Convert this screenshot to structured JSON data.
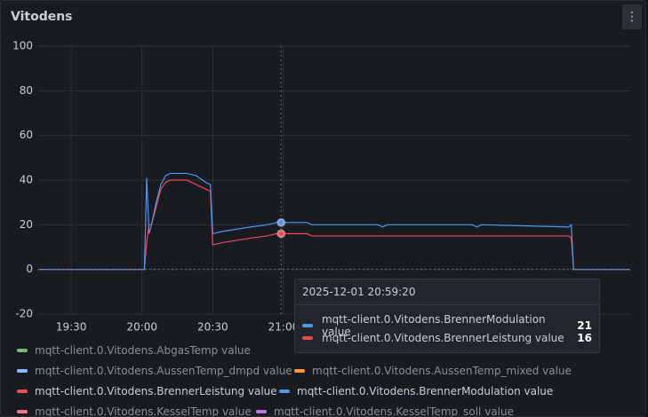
{
  "panel": {
    "title": "Vitodens",
    "menu_icon": "⋮"
  },
  "chart_data": {
    "type": "line",
    "ylim": [
      -20,
      100
    ],
    "yticks": [
      -20,
      0,
      20,
      40,
      60,
      80,
      100
    ],
    "xlim": [
      "19:16",
      "23:27"
    ],
    "xticks": [
      "19:30",
      "20:00",
      "20:30",
      "21:00"
    ],
    "grid": true,
    "series": [
      {
        "name": "mqtt-client.0.Vitodens.AbgasTemp value",
        "color": "#73bf69",
        "hidden": true
      },
      {
        "name": "mqtt-client.0.Vitodens.AussenTemp_dmpd value",
        "color": "#8ab8ff",
        "hidden": true
      },
      {
        "name": "mqtt-client.0.Vitodens.AussenTemp_mixed value",
        "color": "#ff9830",
        "hidden": true
      },
      {
        "name": "mqtt-client.0.Vitodens.BrennerLeistung value",
        "color": "#f2495c",
        "hidden": false,
        "x": [
          "19:16",
          "20:01",
          "20:02",
          "20:03",
          "20:04",
          "20:06",
          "20:08",
          "20:10",
          "20:12",
          "20:19",
          "20:23",
          "20:27",
          "20:29",
          "20:30",
          "20:34",
          "20:46",
          "20:53",
          "20:57",
          "21:10",
          "21:12",
          "23:01",
          "23:02",
          "23:03",
          "23:27"
        ],
        "values": [
          0,
          0,
          12,
          20,
          20,
          28,
          36,
          39,
          40,
          40,
          38,
          36,
          35,
          11,
          12,
          14,
          15,
          16,
          16,
          15,
          15,
          14,
          0,
          0
        ]
      },
      {
        "name": "mqtt-client.0.Vitodens.BrennerModulation value",
        "color": "#5794f2",
        "hidden": false,
        "x": [
          "19:16",
          "20:01",
          "20:02",
          "20:03",
          "20:04",
          "20:06",
          "20:08",
          "20:10",
          "20:12",
          "20:19",
          "20:23",
          "20:27",
          "20:29",
          "20:30",
          "20:34",
          "20:46",
          "20:53",
          "20:57",
          "21:10",
          "21:12",
          "21:40",
          "21:42",
          "21:44",
          "22:20",
          "22:22",
          "22:24",
          "23:01",
          "23:02",
          "23:03",
          "23:27"
        ],
        "values": [
          0,
          0,
          41,
          16,
          20,
          30,
          38,
          42,
          43,
          43,
          42,
          39,
          38,
          16,
          17,
          19,
          20,
          21,
          21,
          20,
          20,
          19,
          20,
          20,
          19,
          20,
          19,
          20,
          0,
          0
        ]
      },
      {
        "name": "mqtt-client.0.Vitodens.KesselTemp value",
        "color": "#ff7383",
        "hidden": true
      },
      {
        "name": "mqtt-client.0.Vitodens.KesselTemp_soll value",
        "color": "#b877d9",
        "hidden": true
      }
    ]
  },
  "tooltip": {
    "time": "2025-12-01 20:59:20",
    "x": "20:59",
    "rows": [
      {
        "name": "mqtt-client.0.Vitodens.BrennerModulation value",
        "color": "#5794f2",
        "value": 21
      },
      {
        "name": "mqtt-client.0.Vitodens.BrennerLeistung value",
        "color": "#f2495c",
        "value": 16
      }
    ]
  }
}
